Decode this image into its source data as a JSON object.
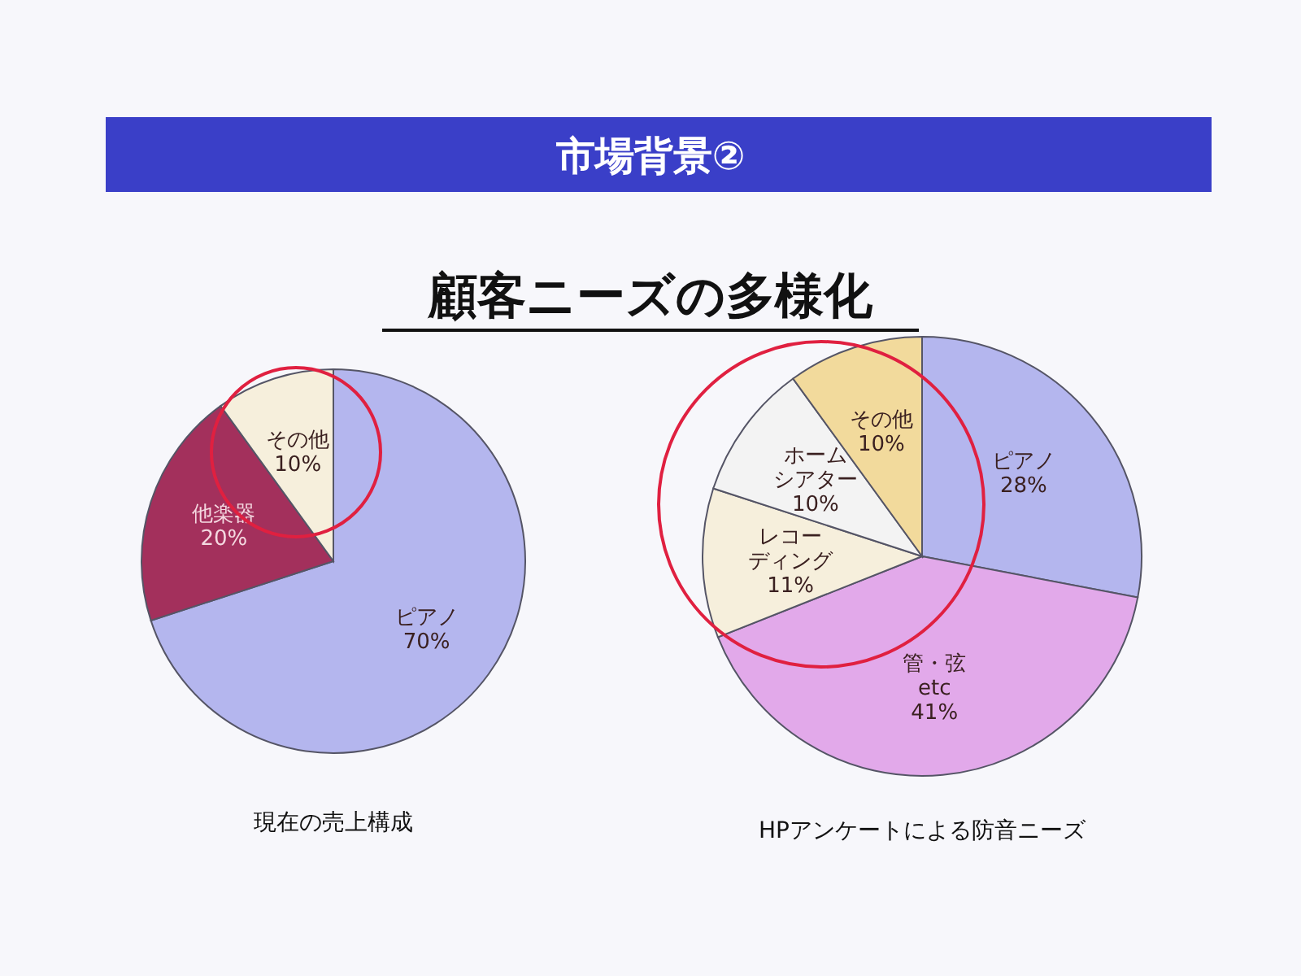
{
  "chart_data": [
    {
      "type": "pie",
      "title": "市場背景②",
      "subtitle": "顧客ニーズの多様化",
      "annotations": [
        "現在の売上構成"
      ],
      "categories": [
        "ピアノ",
        "他楽器",
        "その他"
      ],
      "values": [
        70,
        20,
        10
      ],
      "value_labels": [
        "70%",
        "20%",
        "10%"
      ],
      "colors": [
        "#b4b6ee",
        "#a3305c",
        "#f6efdc"
      ]
    },
    {
      "type": "pie",
      "annotations": [
        "HPアンケートによる防音ニーズ"
      ],
      "categories": [
        "ピアノ",
        "管・弦etc",
        "レコーディング",
        "ホームシアター",
        "その他"
      ],
      "values": [
        28,
        41,
        11,
        10,
        10
      ],
      "value_labels": [
        "28%",
        "41%",
        "11%",
        "10%",
        "10%"
      ],
      "colors": [
        "#b4b6ee",
        "#e2a9ea",
        "#f6efdc",
        "#f3f3f3",
        "#f2da9c"
      ]
    }
  ]
}
